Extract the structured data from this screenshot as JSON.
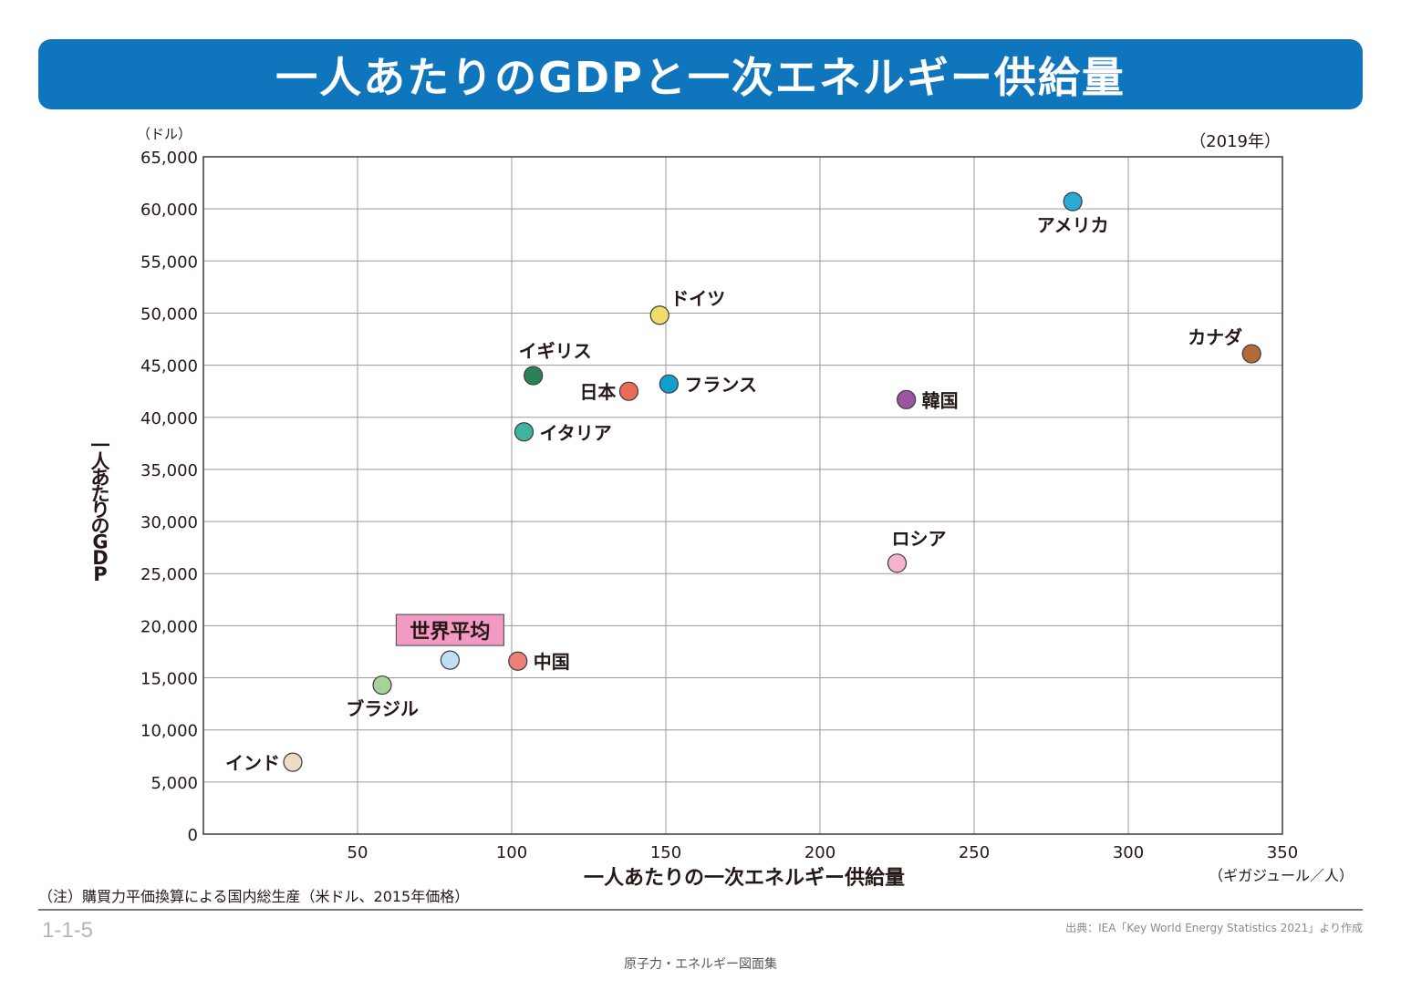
{
  "title": "一人あたりのGDPと一次エネルギー供給量",
  "note": "（注）購買力平価換算による国内総生産（米ドル、2015年価格）",
  "figure_number": "1-1-5",
  "source": "出典：IEA「Key World Energy Statistics 2021」より作成",
  "booklet": "原子力・エネルギー図面集",
  "chart_data": {
    "type": "scatter",
    "year_label": "（2019年）",
    "y_unit_label": "（ドル）",
    "ylabel": "一人あたりのGDP",
    "xlabel": "一人あたりの一次エネルギー供給量",
    "x_unit_label": "（ギガジュール／人）",
    "xlim": [
      0,
      350
    ],
    "ylim": [
      0,
      65000
    ],
    "x_ticks": [
      50,
      100,
      150,
      200,
      250,
      300,
      350
    ],
    "y_ticks": [
      0,
      5000,
      10000,
      15000,
      20000,
      25000,
      30000,
      35000,
      40000,
      45000,
      50000,
      55000,
      60000,
      65000
    ],
    "x_tick_labels": [
      "50",
      "100",
      "150",
      "200",
      "250",
      "300",
      "350"
    ],
    "y_tick_labels": [
      "0",
      "5,000",
      "10,000",
      "15,000",
      "20,000",
      "25,000",
      "30,000",
      "35,000",
      "40,000",
      "45,000",
      "50,000",
      "55,000",
      "60,000",
      "65,000"
    ],
    "grid": true,
    "points": [
      {
        "label": "アメリカ",
        "x": 282,
        "y": 60700,
        "color": "#29a9d6",
        "label_pos": "below"
      },
      {
        "label": "カナダ",
        "x": 340,
        "y": 46100,
        "color": "#b06a3c",
        "label_pos": "upper-left"
      },
      {
        "label": "ドイツ",
        "x": 148,
        "y": 49800,
        "color": "#f1dd6b",
        "label_pos": "upper-right"
      },
      {
        "label": "イギリス",
        "x": 107,
        "y": 44000,
        "color": "#2a8058",
        "label_pos": "above"
      },
      {
        "label": "フランス",
        "x": 151,
        "y": 43200,
        "color": "#129fcf",
        "label_pos": "right"
      },
      {
        "label": "日本",
        "x": 138,
        "y": 42500,
        "color": "#ec6a5a",
        "label_pos": "left"
      },
      {
        "label": "韓国",
        "x": 228,
        "y": 41700,
        "color": "#9b56a0",
        "label_pos": "right"
      },
      {
        "label": "イタリア",
        "x": 104,
        "y": 38600,
        "color": "#3fb39f",
        "label_pos": "right"
      },
      {
        "label": "ロシア",
        "x": 225,
        "y": 26000,
        "color": "#f5b3cf",
        "label_pos": "above"
      },
      {
        "label": "中国",
        "x": 102,
        "y": 16600,
        "color": "#ef8078",
        "label_pos": "right"
      },
      {
        "label": "世界平均",
        "x": 80,
        "y": 16700,
        "color": "#bfe0f3",
        "label_pos": "boxed-above",
        "highlight": true
      },
      {
        "label": "ブラジル",
        "x": 58,
        "y": 14300,
        "color": "#a5d49a",
        "label_pos": "below"
      },
      {
        "label": "インド",
        "x": 29,
        "y": 6900,
        "color": "#ecdcc4",
        "label_pos": "left"
      }
    ],
    "highlight_box_color": "#f29ac4"
  }
}
